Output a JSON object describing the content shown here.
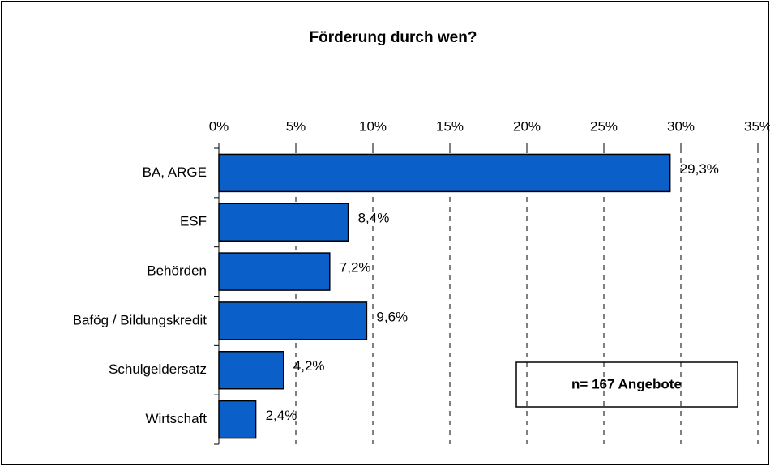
{
  "chart_data": {
    "type": "bar",
    "orientation": "horizontal",
    "title": "Förderung durch wen?",
    "categories": [
      "BA, ARGE",
      "ESF",
      "Behörden",
      "Bafög / Bildungskredit",
      "Schulgeldersatz",
      "Wirtschaft"
    ],
    "values": [
      29.3,
      8.4,
      7.2,
      9.6,
      4.2,
      2.4
    ],
    "value_labels": [
      "29,3%",
      "8,4%",
      "7,2%",
      "9,6%",
      "4,2%",
      "2,4%"
    ],
    "color": "#0a5fc8",
    "xlim": [
      0,
      35
    ],
    "xticks": [
      {
        "value": 0,
        "label": "0%"
      },
      {
        "value": 5,
        "label": "5%"
      },
      {
        "value": 10,
        "label": "10%"
      },
      {
        "value": 15,
        "label": "15%"
      },
      {
        "value": 20,
        "label": "20%"
      },
      {
        "value": 25,
        "label": "25%"
      },
      {
        "value": 30,
        "label": "30%"
      },
      {
        "value": 35,
        "label": "35%"
      }
    ],
    "grid": true,
    "annotation": "n= 167 Angebote"
  }
}
